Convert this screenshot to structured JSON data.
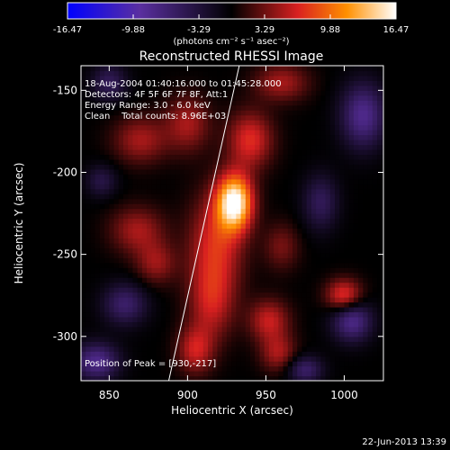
{
  "chart_data": {
    "type": "heatmap",
    "title": "Reconstructed RHESSI Image",
    "xlabel": "Heliocentric X (arcsec)",
    "ylabel": "Heliocentric Y (arcsec)",
    "xlim": [
      832,
      1025
    ],
    "ylim": [
      -327,
      -135
    ],
    "x_ticks": [
      850,
      900,
      950,
      1000
    ],
    "y_ticks": [
      -150,
      -200,
      -250,
      -300
    ],
    "colorbar": {
      "min": -16.47,
      "max": 16.47,
      "ticks": [
        -16.47,
        -9.88,
        -3.29,
        3.29,
        9.88,
        16.47
      ],
      "unit_label": "(photons cm⁻² s⁻¹ asec⁻²)",
      "colormap": "blue-purple-black-red-orange-yellow-white"
    },
    "annotations": {
      "time_range": "18-Aug-2004 01:40:16.000 to 01:45:28.000",
      "detectors": "Detectors: 4F 5F 6F 7F 8F, Att:1",
      "energy_range": "Energy Range: 3.0 - 6.0 keV",
      "clean": "Clean    Total counts: 8.96E+03",
      "peak": "Position of Peak = [930,-217]"
    },
    "peak": {
      "x": 930,
      "y": -217
    },
    "limb_line": [
      [
        888,
        -327
      ],
      [
        933,
        -135
      ]
    ],
    "sources": [
      {
        "x": 930,
        "y": -218,
        "sx": 8,
        "sy": 12,
        "amp": 16.5
      },
      {
        "x": 918,
        "y": -245,
        "sx": 12,
        "sy": 22,
        "amp": 7
      },
      {
        "x": 915,
        "y": -280,
        "sx": 10,
        "sy": 16,
        "amp": 5
      },
      {
        "x": 905,
        "y": -308,
        "sx": 8,
        "sy": 10,
        "amp": 6
      },
      {
        "x": 940,
        "y": -180,
        "sx": 10,
        "sy": 12,
        "amp": 7
      },
      {
        "x": 900,
        "y": -170,
        "sx": 10,
        "sy": 12,
        "amp": 5
      },
      {
        "x": 870,
        "y": -180,
        "sx": 12,
        "sy": 10,
        "amp": 5
      },
      {
        "x": 868,
        "y": -235,
        "sx": 12,
        "sy": 10,
        "amp": 5
      },
      {
        "x": 880,
        "y": -255,
        "sx": 9,
        "sy": 9,
        "amp": 4.5
      },
      {
        "x": 952,
        "y": -290,
        "sx": 9,
        "sy": 9,
        "amp": 6
      },
      {
        "x": 958,
        "y": -310,
        "sx": 8,
        "sy": 8,
        "amp": 5
      },
      {
        "x": 1000,
        "y": -275,
        "sx": 8,
        "sy": 7,
        "amp": 8
      },
      {
        "x": 960,
        "y": -145,
        "sx": 12,
        "sy": 8,
        "amp": 5
      },
      {
        "x": 960,
        "y": -245,
        "sx": 8,
        "sy": 10,
        "amp": 3.5
      },
      {
        "x": 985,
        "y": -218,
        "sx": 8,
        "sy": 12,
        "amp": -5
      },
      {
        "x": 1012,
        "y": -165,
        "sx": 10,
        "sy": 14,
        "amp": -8
      },
      {
        "x": 1005,
        "y": -290,
        "sx": 9,
        "sy": 9,
        "amp": -8
      },
      {
        "x": 842,
        "y": -315,
        "sx": 10,
        "sy": 8,
        "amp": -8
      },
      {
        "x": 850,
        "y": -145,
        "sx": 8,
        "sy": 8,
        "amp": -5
      },
      {
        "x": 860,
        "y": -280,
        "sx": 10,
        "sy": 9,
        "amp": -6
      },
      {
        "x": 975,
        "y": -320,
        "sx": 8,
        "sy": 6,
        "amp": -6
      },
      {
        "x": 845,
        "y": -205,
        "sx": 7,
        "sy": 7,
        "amp": -4
      }
    ]
  },
  "footer": {
    "date": "22-Jun-2013 13:39"
  }
}
